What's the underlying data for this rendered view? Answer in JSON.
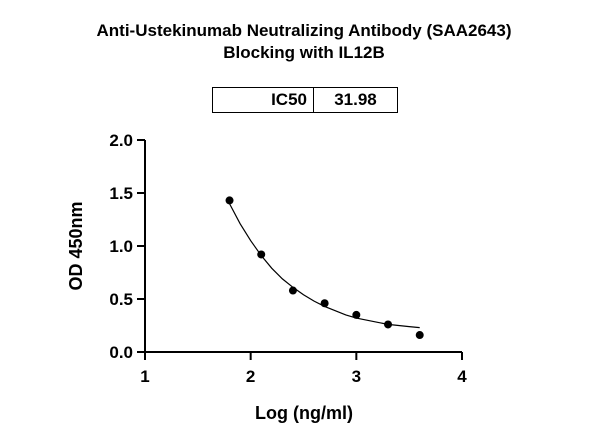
{
  "title_line1": "Anti-Ustekinumab Neutralizing Antibody (SAA2643)",
  "title_line2": "Blocking with IL12B",
  "ic50": {
    "label": "IC50",
    "value": "31.98"
  },
  "chart_data": {
    "type": "scatter",
    "title": "Anti-Ustekinumab Neutralizing Antibody (SAA2643) Blocking with IL12B",
    "xlabel": "Log (ng/ml)",
    "ylabel": "OD 450nm",
    "xlim": [
      1,
      4
    ],
    "ylim": [
      0,
      2
    ],
    "xticks": [
      1,
      2,
      3,
      4
    ],
    "yticks": [
      "0.0",
      "0.5",
      "1.0",
      "1.5",
      "2.0"
    ],
    "grid": false,
    "series": [
      {
        "x": [
          1.8,
          2.1,
          2.4,
          2.7,
          3.0,
          3.3,
          3.6
        ],
        "y": [
          1.43,
          0.92,
          0.58,
          0.46,
          0.35,
          0.26,
          0.16
        ]
      }
    ],
    "fit_curve": {
      "x": [
        1.8,
        1.9,
        2.0,
        2.1,
        2.2,
        2.3,
        2.4,
        2.5,
        2.6,
        2.7,
        2.8,
        2.9,
        3.0,
        3.1,
        3.2,
        3.3,
        3.4,
        3.5,
        3.6
      ],
      "y": [
        1.4,
        1.21,
        1.05,
        0.91,
        0.79,
        0.69,
        0.61,
        0.54,
        0.48,
        0.43,
        0.39,
        0.35,
        0.32,
        0.3,
        0.28,
        0.26,
        0.25,
        0.24,
        0.23
      ]
    }
  }
}
